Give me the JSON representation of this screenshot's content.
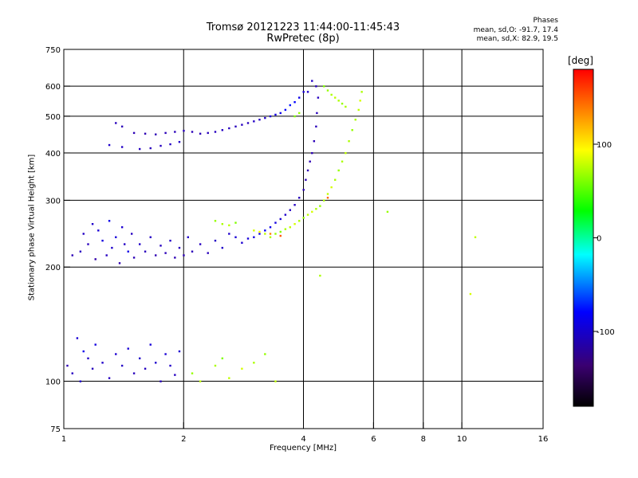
{
  "header": {
    "title_line1": "Tromsø 20121223 11:44:00-11:45:43",
    "title_line2": "RwPretec (8p)",
    "stats_title": "Phases",
    "stats_o": "mean, sd,O: -91.7, 17.4",
    "stats_x": "mean, sd,X:  82.9, 19.5"
  },
  "colorbar": {
    "label": "[deg]",
    "ticks": [
      {
        "value": 100,
        "label": "100"
      },
      {
        "value": 0,
        "label": "0"
      },
      {
        "value": -100,
        "label": "-100"
      }
    ],
    "range": [
      -180,
      180
    ]
  },
  "chart_data": {
    "type": "scatter",
    "xlabel": "Frequency [MHz]",
    "ylabel": "Stationary phase Virtual Height [km]",
    "x_scale": "log",
    "y_scale": "log",
    "xlim": [
      1,
      16
    ],
    "ylim": [
      75,
      750
    ],
    "xticks": [
      {
        "value": 1,
        "label": "1"
      },
      {
        "value": 2,
        "label": "2"
      },
      {
        "value": 4,
        "label": "4"
      },
      {
        "value": 6,
        "label": "6"
      },
      {
        "value": 8,
        "label": "8"
      },
      {
        "value": 10,
        "label": "10"
      },
      {
        "value": 16,
        "label": "16"
      }
    ],
    "yticks": [
      {
        "value": 75,
        "label": "75"
      },
      {
        "value": 100,
        "label": "100"
      },
      {
        "value": 200,
        "label": "200"
      },
      {
        "value": 300,
        "label": "300"
      },
      {
        "value": 400,
        "label": "400"
      },
      {
        "value": 500,
        "label": "500"
      },
      {
        "value": 600,
        "label": "600"
      },
      {
        "value": 750,
        "label": "750"
      }
    ],
    "vgrid": [
      2,
      4,
      6,
      8,
      10
    ],
    "hgrid": [
      100,
      200,
      300,
      400,
      500,
      600
    ],
    "color_scale": [
      "#000000",
      "#4b0082",
      "#0000ff",
      "#00ffff",
      "#00ff00",
      "#ffff00",
      "#ff0000"
    ],
    "series": [
      {
        "points": [
          [
            1.05,
            215,
            -95
          ],
          [
            1.1,
            220,
            -90
          ],
          [
            1.12,
            245,
            -88
          ],
          [
            1.15,
            230,
            -92
          ],
          [
            1.18,
            260,
            -85
          ],
          [
            1.2,
            210,
            -100
          ],
          [
            1.22,
            250,
            -80
          ],
          [
            1.25,
            235,
            -75
          ],
          [
            1.28,
            215,
            -90
          ],
          [
            1.3,
            265,
            -70
          ],
          [
            1.32,
            225,
            -85
          ],
          [
            1.35,
            240,
            -78
          ],
          [
            1.38,
            205,
            -98
          ],
          [
            1.4,
            255,
            -82
          ],
          [
            1.42,
            230,
            -88
          ],
          [
            1.45,
            220,
            -72
          ],
          [
            1.48,
            245,
            -90
          ],
          [
            1.5,
            212,
            -95
          ],
          [
            1.55,
            230,
            -86
          ],
          [
            1.6,
            220,
            -92
          ],
          [
            1.65,
            240,
            -88
          ],
          [
            1.7,
            215,
            -97
          ],
          [
            1.75,
            228,
            -90
          ],
          [
            1.8,
            218,
            -94
          ],
          [
            1.85,
            235,
            -87
          ],
          [
            1.9,
            212,
            -96
          ],
          [
            1.95,
            225,
            -91
          ],
          [
            2.0,
            215,
            -95
          ],
          [
            2.05,
            240,
            -85
          ],
          [
            2.1,
            220,
            -93
          ],
          [
            2.2,
            230,
            -90
          ],
          [
            2.3,
            218,
            -92
          ],
          [
            2.4,
            235,
            -88
          ],
          [
            2.5,
            225,
            -86
          ],
          [
            2.6,
            245,
            -84
          ],
          [
            2.7,
            240,
            -80
          ],
          [
            2.8,
            232,
            -82
          ],
          [
            2.9,
            238,
            -78
          ],
          [
            3.0,
            240,
            -75
          ],
          [
            3.1,
            245,
            -70
          ],
          [
            3.2,
            250,
            -65
          ],
          [
            3.3,
            255,
            -70
          ],
          [
            3.4,
            262,
            -75
          ],
          [
            3.5,
            268,
            -80
          ],
          [
            3.6,
            275,
            -85
          ],
          [
            3.7,
            283,
            -88
          ],
          [
            3.8,
            292,
            -90
          ],
          [
            3.9,
            305,
            -92
          ],
          [
            4.0,
            320,
            -95
          ],
          [
            4.05,
            340,
            -96
          ],
          [
            4.1,
            360,
            -97
          ],
          [
            4.15,
            380,
            -96
          ],
          [
            4.2,
            400,
            -95
          ],
          [
            4.25,
            430,
            -94
          ],
          [
            4.3,
            470,
            -93
          ],
          [
            4.32,
            510,
            -92
          ],
          [
            4.35,
            560,
            -90
          ],
          [
            4.3,
            600,
            -92
          ],
          [
            4.2,
            620,
            -88
          ],
          [
            4.1,
            580,
            -85
          ],
          [
            1.35,
            480,
            -92
          ],
          [
            1.4,
            470,
            -94
          ],
          [
            1.5,
            452,
            -95
          ],
          [
            1.6,
            450,
            -96
          ],
          [
            1.7,
            448,
            -95
          ],
          [
            1.8,
            452,
            -94
          ],
          [
            1.9,
            455,
            -93
          ],
          [
            2.0,
            458,
            -92
          ],
          [
            2.1,
            455,
            -94
          ],
          [
            2.2,
            450,
            -95
          ],
          [
            2.3,
            452,
            -92
          ],
          [
            2.4,
            455,
            -90
          ],
          [
            2.5,
            460,
            -88
          ],
          [
            2.6,
            465,
            -90
          ],
          [
            2.7,
            470,
            -92
          ],
          [
            2.8,
            475,
            -90
          ],
          [
            2.9,
            480,
            -92
          ],
          [
            3.0,
            485,
            -88
          ],
          [
            3.1,
            490,
            -90
          ],
          [
            3.2,
            495,
            -86
          ],
          [
            3.3,
            500,
            -80
          ],
          [
            3.4,
            505,
            -75
          ],
          [
            3.5,
            510,
            -70
          ],
          [
            3.6,
            520,
            -60
          ],
          [
            3.7,
            535,
            -55
          ],
          [
            3.8,
            545,
            -60
          ],
          [
            3.9,
            560,
            -70
          ],
          [
            4.0,
            580,
            -80
          ],
          [
            1.3,
            420,
            -85
          ],
          [
            1.4,
            415,
            -88
          ],
          [
            1.55,
            410,
            -90
          ],
          [
            1.65,
            412,
            -92
          ],
          [
            1.75,
            418,
            -90
          ],
          [
            1.85,
            422,
            -88
          ],
          [
            1.95,
            428,
            -86
          ],
          [
            1.02,
            110,
            -95
          ],
          [
            1.05,
            105,
            -90
          ],
          [
            1.08,
            130,
            -80
          ],
          [
            1.1,
            100,
            -85
          ],
          [
            1.12,
            120,
            -70
          ],
          [
            1.15,
            115,
            -88
          ],
          [
            1.18,
            108,
            -92
          ],
          [
            1.2,
            125,
            -75
          ],
          [
            1.25,
            112,
            -86
          ],
          [
            1.3,
            102,
            -90
          ],
          [
            1.35,
            118,
            -82
          ],
          [
            1.4,
            110,
            -88
          ],
          [
            1.45,
            122,
            -80
          ],
          [
            1.5,
            105,
            -92
          ],
          [
            1.55,
            115,
            -86
          ],
          [
            1.6,
            108,
            -90
          ],
          [
            1.65,
            125,
            -78
          ],
          [
            1.7,
            112,
            -84
          ],
          [
            1.75,
            100,
            -92
          ],
          [
            1.8,
            118,
            -80
          ],
          [
            1.85,
            110,
            -86
          ],
          [
            1.9,
            104,
            -90
          ],
          [
            1.95,
            120,
            -82
          ]
        ]
      },
      {
        "points": [
          [
            2.4,
            265,
            95
          ],
          [
            2.5,
            260,
            100
          ],
          [
            2.6,
            258,
            105
          ],
          [
            2.7,
            262,
            90
          ],
          [
            3.0,
            250,
            110
          ],
          [
            3.1,
            248,
            120
          ],
          [
            3.2,
            245,
            105
          ],
          [
            3.3,
            240,
            100
          ],
          [
            3.4,
            245,
            95
          ],
          [
            3.5,
            248,
            90
          ],
          [
            3.6,
            252,
            100
          ],
          [
            3.7,
            255,
            105
          ],
          [
            3.8,
            260,
            110
          ],
          [
            3.9,
            265,
            100
          ],
          [
            4.0,
            270,
            95
          ],
          [
            4.1,
            275,
            105
          ],
          [
            4.2,
            280,
            110
          ],
          [
            4.3,
            285,
            100
          ],
          [
            4.4,
            290,
            95
          ],
          [
            4.5,
            300,
            100
          ],
          [
            4.6,
            312,
            105
          ],
          [
            4.7,
            325,
            110
          ],
          [
            4.8,
            340,
            100
          ],
          [
            4.9,
            360,
            95
          ],
          [
            5.0,
            380,
            100
          ],
          [
            5.1,
            400,
            105
          ],
          [
            5.2,
            430,
            100
          ],
          [
            5.3,
            460,
            95
          ],
          [
            5.4,
            490,
            100
          ],
          [
            5.5,
            520,
            105
          ],
          [
            5.55,
            550,
            110
          ],
          [
            5.6,
            580,
            100
          ],
          [
            4.5,
            600,
            90
          ],
          [
            4.6,
            585,
            95
          ],
          [
            4.7,
            570,
            100
          ],
          [
            4.8,
            560,
            105
          ],
          [
            4.9,
            550,
            100
          ],
          [
            5.0,
            540,
            95
          ],
          [
            5.1,
            530,
            100
          ],
          [
            3.8,
            500,
            90
          ],
          [
            3.9,
            510,
            95
          ],
          [
            2.1,
            105,
            95
          ],
          [
            2.2,
            100,
            105
          ],
          [
            2.4,
            110,
            100
          ],
          [
            2.5,
            115,
            90
          ],
          [
            2.6,
            102,
            105
          ],
          [
            2.8,
            108,
            110
          ],
          [
            3.0,
            112,
            100
          ],
          [
            3.2,
            118,
            95
          ],
          [
            3.4,
            100,
            105
          ],
          [
            6.5,
            280,
            95
          ],
          [
            10.8,
            240,
            105
          ],
          [
            10.5,
            170,
            110
          ],
          [
            4.4,
            190,
            100
          ],
          [
            3.3,
            245,
            150
          ],
          [
            3.5,
            242,
            160
          ],
          [
            4.6,
            305,
            155
          ]
        ]
      }
    ]
  }
}
